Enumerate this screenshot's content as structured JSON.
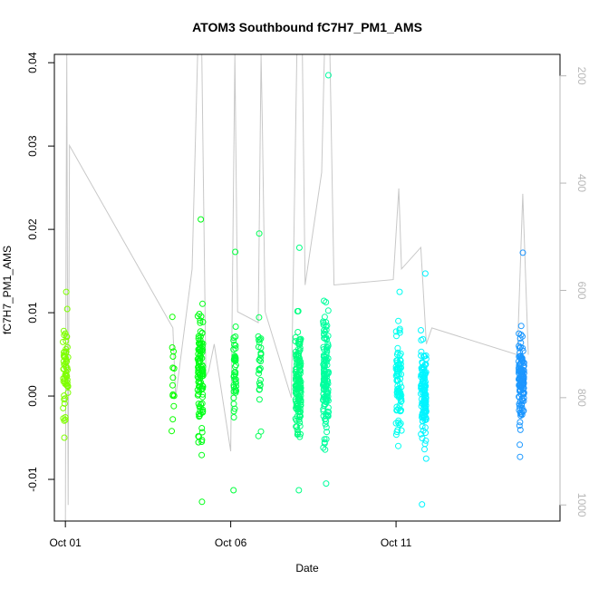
{
  "chart_data": {
    "type": "scatter",
    "title": "ATOM3 Southbound fC7H7_PM1_AMS",
    "xlabel": "Date",
    "ylabel": "fC7H7_PM1_AMS",
    "x_axis": {
      "type": "date",
      "range": [
        "2017-09-30T16:00",
        "2017-10-15T23:00"
      ],
      "ticks": [
        {
          "value": "2017-10-01",
          "label": "Oct 01"
        },
        {
          "value": "2017-10-06",
          "label": "Oct 06"
        },
        {
          "value": "2017-10-11",
          "label": "Oct 11"
        }
      ]
    },
    "y_axis": {
      "range": [
        -0.015,
        0.041
      ],
      "ticks": [
        -0.01,
        0.0,
        0.01,
        0.02,
        0.03,
        0.04
      ],
      "tick_labels": [
        "-0.01",
        "0.00",
        "0.01",
        "0.02",
        "0.03",
        "0.04"
      ]
    },
    "y2_axis": {
      "description": "pressure overlay, reversed",
      "range": [
        1030,
        160
      ],
      "ticks": [
        200,
        400,
        600,
        800,
        1000
      ],
      "tick_labels": [
        "200",
        "400",
        "600",
        "800",
        "1000"
      ],
      "color": "#b8b8b8"
    },
    "grid": false,
    "series": [
      {
        "role": "points",
        "color_scale": [
          "#7fff00",
          "#00ff00",
          "#00ff7f",
          "#00ffff",
          "#1e90ff"
        ],
        "clusters": [
          {
            "center": "2017-10-01T00:00",
            "spread_hours": 2,
            "count": 60,
            "y_min": -0.005,
            "y_max": 0.0125,
            "y_mean": 0.003,
            "y_sd": 0.004
          },
          {
            "center": "2017-10-04T06:00",
            "spread_hours": 1,
            "count": 14,
            "y_min": -0.0042,
            "y_max": 0.0095,
            "y_mean": 0.002,
            "y_sd": 0.003
          },
          {
            "center": "2017-10-05T02:00",
            "spread_hours": 2,
            "count": 110,
            "y_min": -0.0127,
            "y_max": 0.0212,
            "y_mean": 0.003,
            "y_sd": 0.0055
          },
          {
            "center": "2017-10-06T03:00",
            "spread_hours": 1,
            "count": 45,
            "y_min": -0.0113,
            "y_max": 0.0173,
            "y_mean": 0.003,
            "y_sd": 0.004
          },
          {
            "center": "2017-10-06T21:00",
            "spread_hours": 1,
            "count": 30,
            "y_min": -0.0048,
            "y_max": 0.0195,
            "y_mean": 0.004,
            "y_sd": 0.004
          },
          {
            "center": "2017-10-08T01:00",
            "spread_hours": 2,
            "count": 150,
            "y_min": -0.0113,
            "y_max": 0.0178,
            "y_mean": 0.001,
            "y_sd": 0.0045
          },
          {
            "center": "2017-10-08T21:00",
            "spread_hours": 2,
            "count": 140,
            "y_min": -0.0105,
            "y_max": 0.0385,
            "y_mean": 0.002,
            "y_sd": 0.0055
          },
          {
            "center": "2017-10-11T02:00",
            "spread_hours": 2,
            "count": 85,
            "y_min": -0.006,
            "y_max": 0.0125,
            "y_mean": 0.002,
            "y_sd": 0.004
          },
          {
            "center": "2017-10-11T20:00",
            "spread_hours": 2,
            "count": 130,
            "y_min": -0.013,
            "y_max": 0.0147,
            "y_mean": 0.0005,
            "y_sd": 0.004
          },
          {
            "center": "2017-10-14T19:00",
            "spread_hours": 2,
            "count": 130,
            "y_min": -0.0073,
            "y_max": 0.0172,
            "y_mean": 0.002,
            "y_sd": 0.0035
          }
        ]
      },
      {
        "role": "pressure_line",
        "color": "#c8c8c8",
        "points": [
          [
            "2017-10-01T00:00",
            1030
          ],
          [
            "2017-10-01T00:30",
            500
          ],
          [
            "2017-10-01T01:00",
            160
          ],
          [
            "2017-10-01T02:00",
            1000
          ],
          [
            "2017-10-01T03:00",
            330
          ],
          [
            "2017-10-04T06:00",
            670
          ],
          [
            "2017-10-04T08:00",
            800
          ],
          [
            "2017-10-04T20:00",
            560
          ],
          [
            "2017-10-05T00:00",
            160
          ],
          [
            "2017-10-05T03:00",
            160
          ],
          [
            "2017-10-05T06:00",
            760
          ],
          [
            "2017-10-05T08:00",
            750
          ],
          [
            "2017-10-05T12:00",
            700
          ],
          [
            "2017-10-06T00:00",
            900
          ],
          [
            "2017-10-06T03:00",
            160
          ],
          [
            "2017-10-06T05:00",
            640
          ],
          [
            "2017-10-06T20:00",
            660
          ],
          [
            "2017-10-06T22:00",
            160
          ],
          [
            "2017-10-06T23:00",
            300
          ],
          [
            "2017-10-07T01:00",
            640
          ],
          [
            "2017-10-07T20:00",
            800
          ],
          [
            "2017-10-08T00:00",
            160
          ],
          [
            "2017-10-08T04:00",
            160
          ],
          [
            "2017-10-08T06:00",
            590
          ],
          [
            "2017-10-08T18:00",
            380
          ],
          [
            "2017-10-08T20:00",
            160
          ],
          [
            "2017-10-09T00:00",
            160
          ],
          [
            "2017-10-09T03:00",
            590
          ],
          [
            "2017-10-10T22:00",
            580
          ],
          [
            "2017-10-11T02:00",
            410
          ],
          [
            "2017-10-11T04:00",
            560
          ],
          [
            "2017-10-11T18:00",
            520
          ],
          [
            "2017-10-11T22:00",
            700
          ],
          [
            "2017-10-12T02:00",
            670
          ],
          [
            "2017-10-14T16:00",
            720
          ],
          [
            "2017-10-14T20:00",
            420
          ],
          [
            "2017-10-15T00:00",
            720
          ]
        ]
      }
    ]
  }
}
